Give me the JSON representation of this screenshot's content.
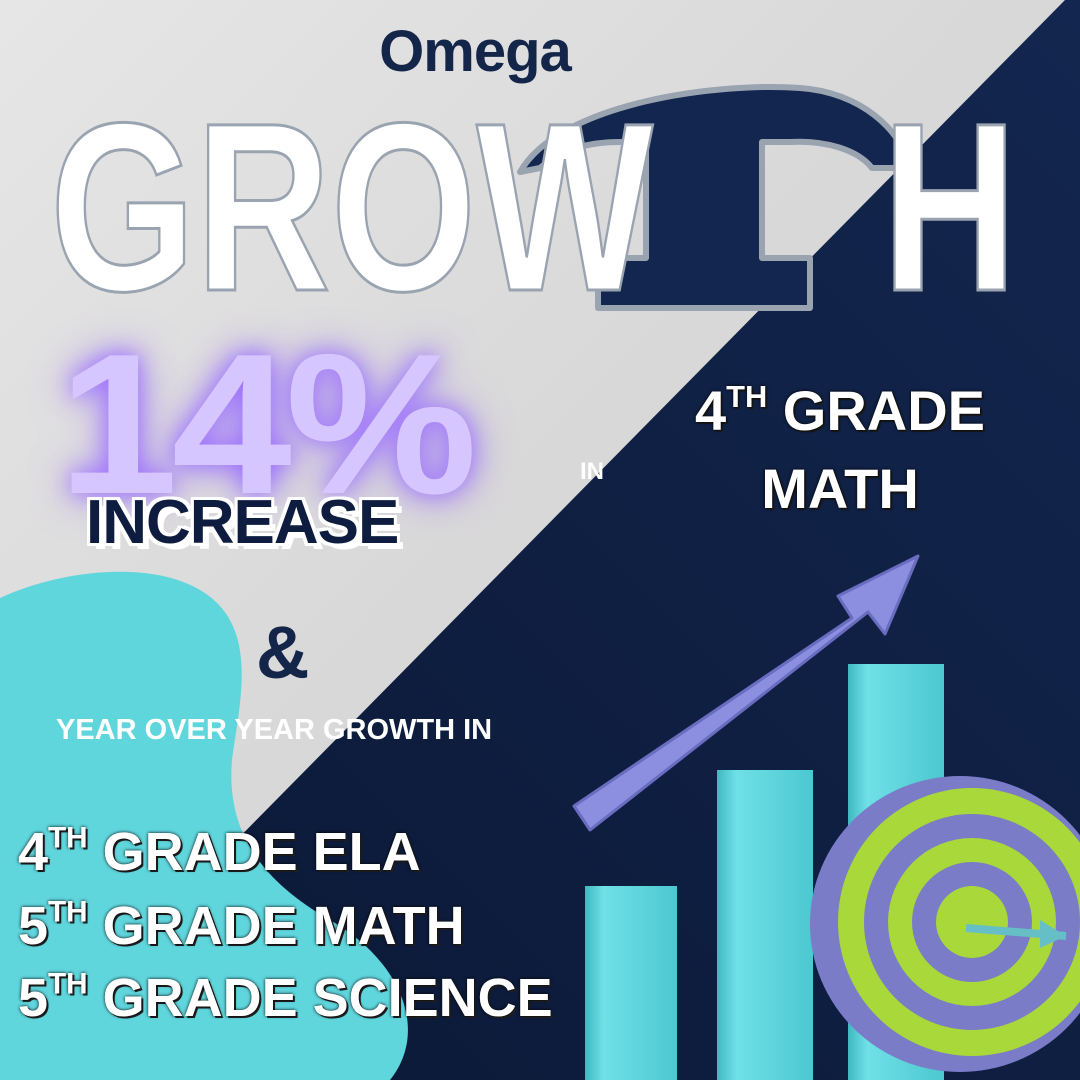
{
  "brand": "Omega",
  "hero": {
    "text_left": "GROW",
    "text_right": "H"
  },
  "stat": {
    "percent": "14%",
    "label": "INCREASE",
    "connector": "IN"
  },
  "headline": {
    "line1_num": "4",
    "line1_sup": "TH",
    "line1_rest": " GRADE",
    "line2": "MATH"
  },
  "ampersand": "&",
  "subheading": "YEAR OVER YEAR GROWTH IN",
  "grades": [
    {
      "num": "4",
      "sup": "TH",
      "rest": " GRADE ELA"
    },
    {
      "num": "5",
      "sup": "TH",
      "rest": " GRADE MATH"
    },
    {
      "num": "5",
      "sup": "TH",
      "rest": " GRADE SCIENCE"
    }
  ],
  "colors": {
    "navy": "#0e1d3f",
    "light_gray": "#dcdcdc",
    "teal": "#5fd5dc",
    "lavender": "#d6c6ff",
    "arrow": "#8c8ee0",
    "target_green": "#a8d83a",
    "target_purple": "#7a7cc8"
  },
  "icons": [
    "growth-arrow-icon",
    "bar-chart-icon",
    "target-icon",
    "omega-logo-icon"
  ]
}
